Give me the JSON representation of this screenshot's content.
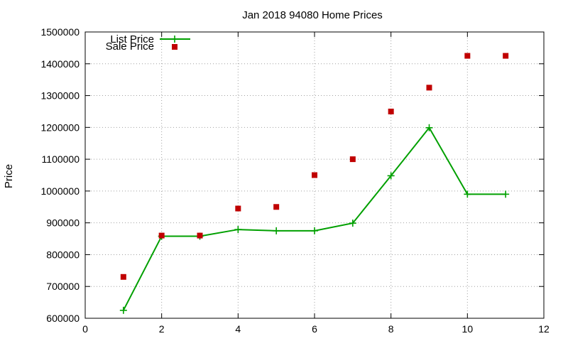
{
  "chart_data": {
    "type": "line",
    "title": "Jan 2018 94080 Home Prices",
    "xlabel": "",
    "ylabel": "Price",
    "xlim": [
      0,
      12
    ],
    "ylim": [
      600000,
      1500000
    ],
    "x_ticks": [
      "0",
      "2",
      "4",
      "6",
      "8",
      "10",
      "12"
    ],
    "y_ticks": [
      "600000",
      "700000",
      "800000",
      "900000",
      "1000000",
      "1100000",
      "1200000",
      "1300000",
      "1400000",
      "1500000"
    ],
    "grid": true,
    "legend_position": "top-left",
    "series": [
      {
        "name": "List Price",
        "style": "linespoints",
        "color": "#00a000",
        "x": [
          1,
          2,
          3,
          4,
          5,
          6,
          7,
          8,
          9,
          10,
          11
        ],
        "y": [
          625000,
          858000,
          858000,
          879000,
          875000,
          875000,
          899000,
          1048000,
          1199000,
          990000,
          990000
        ]
      },
      {
        "name": "Sale Price",
        "style": "points",
        "color": "#c00000",
        "x": [
          1,
          2,
          3,
          4,
          5,
          6,
          7,
          8,
          9,
          10,
          11
        ],
        "y": [
          730000,
          860000,
          860000,
          945000,
          950000,
          1050000,
          1100000,
          1250000,
          1325000,
          1425000,
          1425000
        ]
      }
    ]
  }
}
